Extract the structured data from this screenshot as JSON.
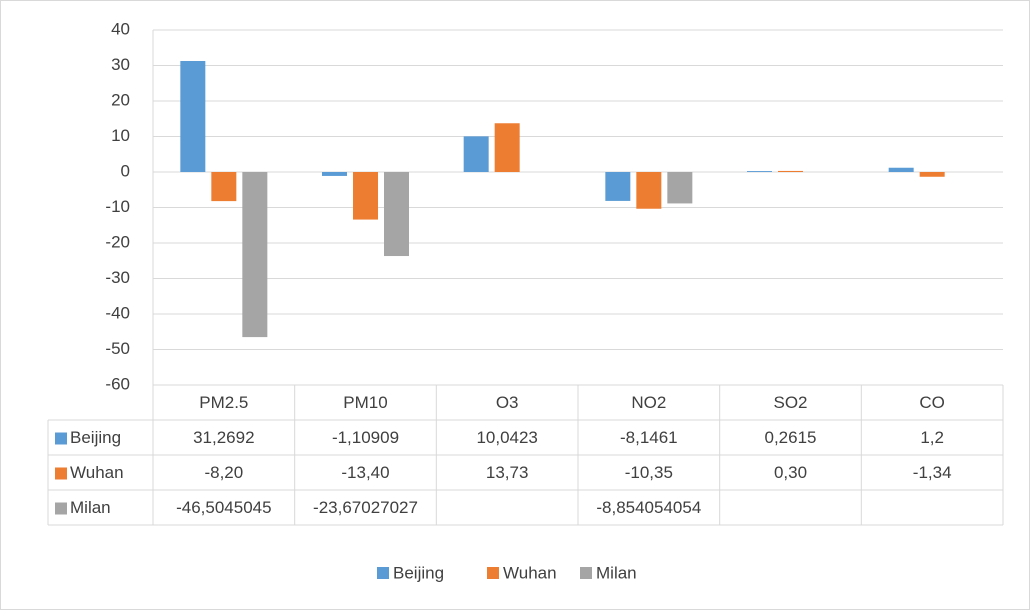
{
  "chart_data": {
    "type": "bar",
    "categories": [
      "PM2.5",
      "PM10",
      "O3",
      "NO2",
      "SO2",
      "CO"
    ],
    "series": [
      {
        "name": "Beijing",
        "color": "#5b9bd5",
        "values": [
          31.2692,
          -1.10909,
          10.0423,
          -8.1461,
          0.2615,
          1.2
        ],
        "value_labels": [
          "31,2692",
          "-1,10909",
          "10,0423",
          "-8,1461",
          "0,2615",
          "1,2"
        ]
      },
      {
        "name": "Wuhan",
        "color": "#ed7d31",
        "values": [
          -8.2,
          -13.4,
          13.73,
          -10.35,
          0.3,
          -1.34
        ],
        "value_labels": [
          "-8,20",
          "-13,40",
          "13,73",
          "-10,35",
          "0,30",
          "-1,34"
        ]
      },
      {
        "name": "Milan",
        "color": "#a5a5a5",
        "values": [
          -46.5045045,
          -23.67027027,
          null,
          -8.854054054,
          null,
          null
        ],
        "value_labels": [
          "-46,5045045",
          "-23,67027027",
          null,
          "-8,854054054",
          null,
          null
        ]
      }
    ],
    "ylim": [
      -60,
      40
    ],
    "yticks": [
      -60,
      -50,
      -40,
      -30,
      -20,
      -10,
      0,
      10,
      20,
      30,
      40
    ],
    "grid": true
  }
}
